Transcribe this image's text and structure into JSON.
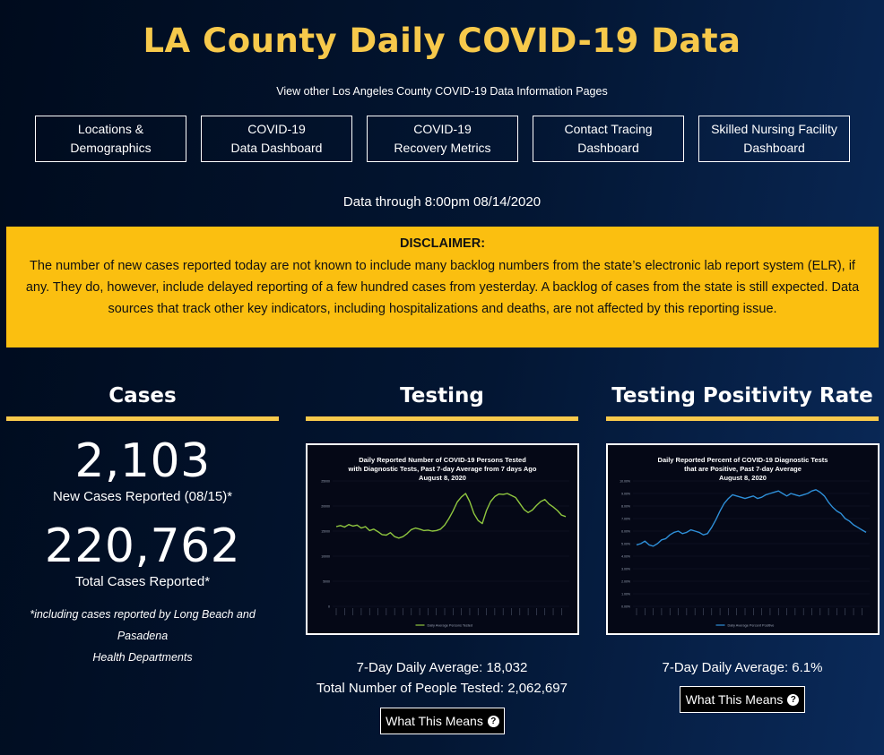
{
  "header": {
    "title": "LA County Daily COVID-19 Data",
    "subtitle": "View other Los Angeles County COVID-19 Data Information Pages"
  },
  "nav": [
    {
      "line1": "Locations &",
      "line2": "Demographics"
    },
    {
      "line1": "COVID-19",
      "line2": "Data Dashboard"
    },
    {
      "line1": "COVID-19",
      "line2": "Recovery Metrics"
    },
    {
      "line1": "Contact Tracing",
      "line2": "Dashboard"
    },
    {
      "line1": "Skilled Nursing Facility",
      "line2": "Dashboard"
    }
  ],
  "updated": "Data through 8:00pm 08/14/2020",
  "disclaimer": {
    "title": "DISCLAIMER:",
    "text": "The number of new cases reported today are not known to include many backlog numbers from the state’s electronic lab report system (ELR), if any. They do, however, include delayed reporting of a few hundred cases from yesterday. A backlog of cases from the state is still expected. Data sources that track other key indicators, including hospitalizations and deaths, are not affected by this reporting issue."
  },
  "cases": {
    "title": "Cases",
    "new_value": "2,103",
    "new_label": "New Cases Reported (08/15)*",
    "total_value": "220,762",
    "total_label": "Total Cases Reported*",
    "footnote_line1": "*including cases reported by Long Beach and Pasadena",
    "footnote_line2": "Health Departments"
  },
  "testing": {
    "title": "Testing",
    "avg_text": "7-Day Daily Average: 18,032",
    "total_text": "Total Number of People Tested: 2,062,697",
    "button_label": "What This Means"
  },
  "positivity": {
    "title": "Testing Positivity Rate",
    "avg_text": "7-Day Daily Average: 6.1%",
    "button_label": "What This Means"
  },
  "colors": {
    "accent": "#f7c94b",
    "disclaimer_bg": "#fbbf10",
    "testing_line": "#8fc63f",
    "positivity_line": "#2e8fd8"
  },
  "icons": {
    "help": "question-circle-icon"
  },
  "chart_data": [
    {
      "type": "line",
      "title": "Daily Reported Number of COVID-19 Persons Tested with Diagnostic Tests, Past 7-day Average from 7 days Ago",
      "title_lines": [
        "Daily Reported Number of COVID-19 Persons Tested",
        "with Diagnostic Tests, Past 7-day Average from 7 days Ago",
        "August 8, 2020"
      ],
      "ylim": [
        0,
        25000
      ],
      "yticks": [
        "0",
        "5000",
        "10000",
        "15000",
        "20000",
        "25000"
      ],
      "series": [
        {
          "name": "Daily Average Persons Tested",
          "color": "#8fc63f",
          "values": [
            15900,
            16100,
            15800,
            16300,
            16000,
            16200,
            15600,
            15900,
            15100,
            15400,
            14900,
            14300,
            14200,
            14700,
            13900,
            13600,
            13900,
            14500,
            15300,
            15600,
            15400,
            15100,
            15200,
            15000,
            15100,
            15400,
            16200,
            17500,
            19000,
            20800,
            21800,
            22500,
            20900,
            18500,
            17100,
            16500,
            19100,
            20900,
            21900,
            22400,
            22300,
            22500,
            22100,
            21700,
            20500,
            19300,
            18700,
            19200,
            20100,
            20900,
            21300,
            20400,
            19800,
            19100,
            18200,
            17900
          ]
        }
      ]
    },
    {
      "type": "line",
      "title": "Daily Reported Percent of COVID-19 Diagnostic Tests that are Positive, Past 7-day Average",
      "title_lines": [
        "Daily Reported Percent of COVID-19 Diagnostic Tests",
        "that are Positive, Past 7-day Average",
        "August 8, 2020"
      ],
      "ylim": [
        0,
        10
      ],
      "yticks": [
        "0.00%",
        "1.00%",
        "2.00%",
        "3.00%",
        "4.00%",
        "5.00%",
        "6.00%",
        "7.00%",
        "8.00%",
        "9.00%",
        "10.00%"
      ],
      "series": [
        {
          "name": "Daily Average Percent Positive",
          "color": "#2e8fd8",
          "values": [
            4.9,
            5.0,
            5.2,
            4.9,
            4.8,
            5.0,
            5.3,
            5.4,
            5.7,
            5.9,
            6.0,
            5.8,
            5.9,
            6.1,
            6.0,
            5.9,
            5.7,
            5.8,
            6.3,
            6.9,
            7.6,
            8.2,
            8.6,
            8.9,
            8.8,
            8.7,
            8.6,
            8.7,
            8.8,
            8.6,
            8.7,
            8.9,
            9.0,
            9.1,
            9.2,
            9.0,
            8.8,
            9.0,
            8.9,
            8.8,
            8.9,
            9.0,
            9.2,
            9.3,
            9.1,
            8.8,
            8.3,
            7.9,
            7.6,
            7.4,
            7.0,
            6.8,
            6.5,
            6.3,
            6.1,
            5.9
          ]
        }
      ]
    }
  ]
}
